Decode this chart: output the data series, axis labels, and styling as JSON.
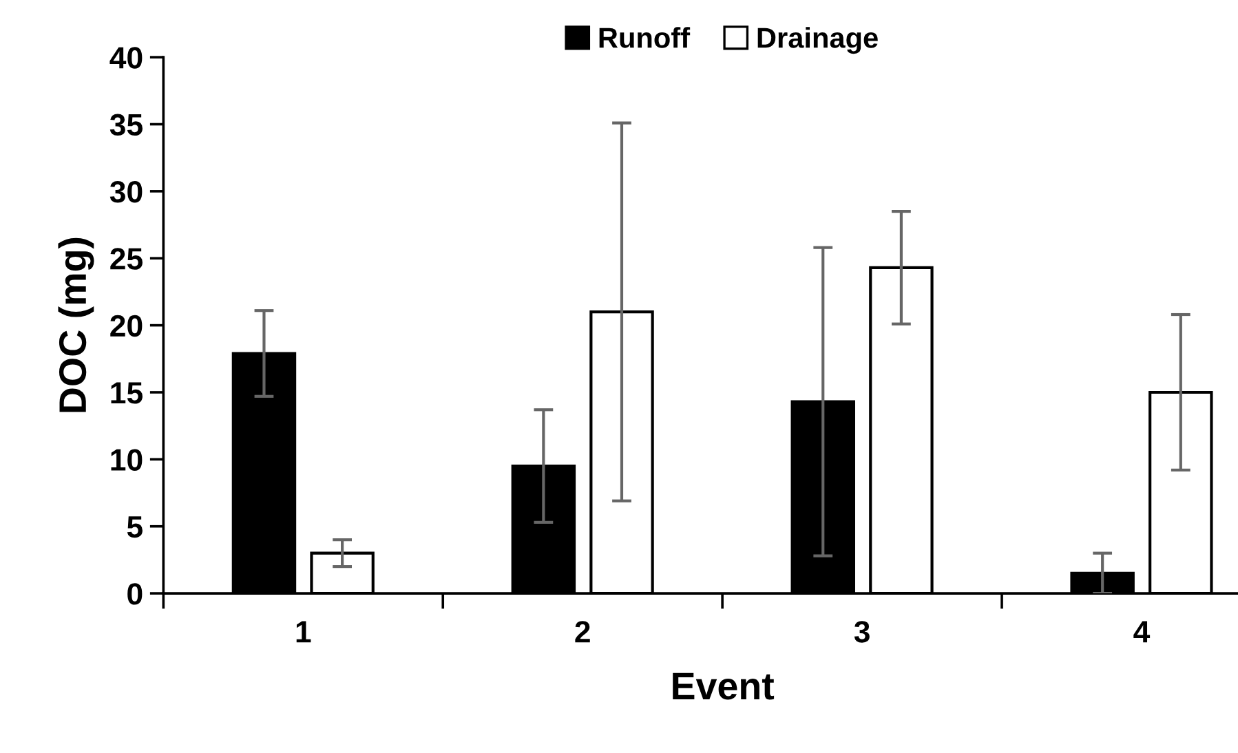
{
  "chart_data": {
    "type": "bar",
    "xlabel": "Event",
    "ylabel": "DOC (mg)",
    "categories": [
      "1",
      "2",
      "3",
      "4"
    ],
    "series": [
      {
        "name": "Runoff",
        "color": "#000000",
        "values": [
          17.9,
          9.5,
          14.3,
          1.5
        ],
        "errors": [
          3.2,
          4.2,
          11.5,
          1.5
        ]
      },
      {
        "name": "Drainage",
        "color": "#ffffff",
        "values": [
          3.0,
          21.0,
          24.3,
          15.0
        ],
        "errors": [
          1.0,
          14.1,
          4.2,
          5.8
        ]
      }
    ],
    "ylim": [
      0,
      40
    ],
    "yticks": [
      0,
      5,
      10,
      15,
      20,
      25,
      30,
      35,
      40
    ],
    "grid": false,
    "legend": "top"
  }
}
